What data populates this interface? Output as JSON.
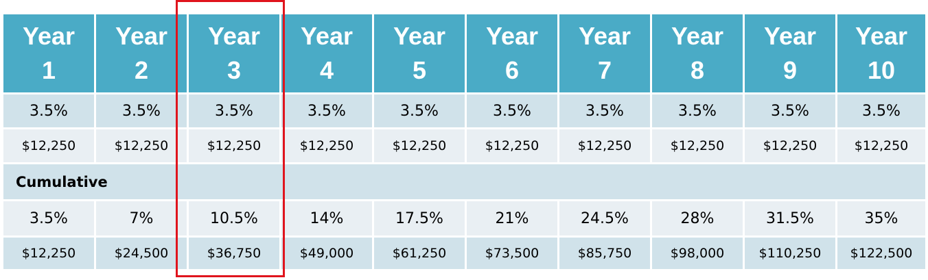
{
  "header": {
    "years": [
      {
        "line1": "Year",
        "line2": "1"
      },
      {
        "line1": "Year",
        "line2": "2"
      },
      {
        "line1": "Year",
        "line2": "3"
      },
      {
        "line1": "Year",
        "line2": "4"
      },
      {
        "line1": "Year",
        "line2": "5"
      },
      {
        "line1": "Year",
        "line2": "6"
      },
      {
        "line1": "Year",
        "line2": "7"
      },
      {
        "line1": "Year",
        "line2": "8"
      },
      {
        "line1": "Year",
        "line2": "9"
      },
      {
        "line1": "Year",
        "line2": "10"
      }
    ]
  },
  "annual": {
    "rates": [
      "3.5%",
      "3.5%",
      "3.5%",
      "3.5%",
      "3.5%",
      "3.5%",
      "3.5%",
      "3.5%",
      "3.5%",
      "3.5%"
    ],
    "amounts": [
      "$12,250",
      "$12,250",
      "$12,250",
      "$12,250",
      "$12,250",
      "$12,250",
      "$12,250",
      "$12,250",
      "$12,250",
      "$12,250"
    ]
  },
  "cumulative": {
    "label": "Cumulative",
    "rates": [
      "3.5%",
      "7%",
      "10.5%",
      "14%",
      "17.5%",
      "21%",
      "24.5%",
      "28%",
      "31.5%",
      "35%"
    ],
    "amounts": [
      "$12,250",
      "$24,500",
      "$36,750",
      "$49,000",
      "$61,250",
      "$73,500",
      "$85,750",
      "$98,000",
      "$110,250",
      "$122,500"
    ]
  },
  "highlight": {
    "column": "Year 3",
    "color": "#e0141d"
  },
  "colors": {
    "header": "#4aabc6",
    "row_dark": "#d0e2ea",
    "row_light": "#e9eff3"
  }
}
